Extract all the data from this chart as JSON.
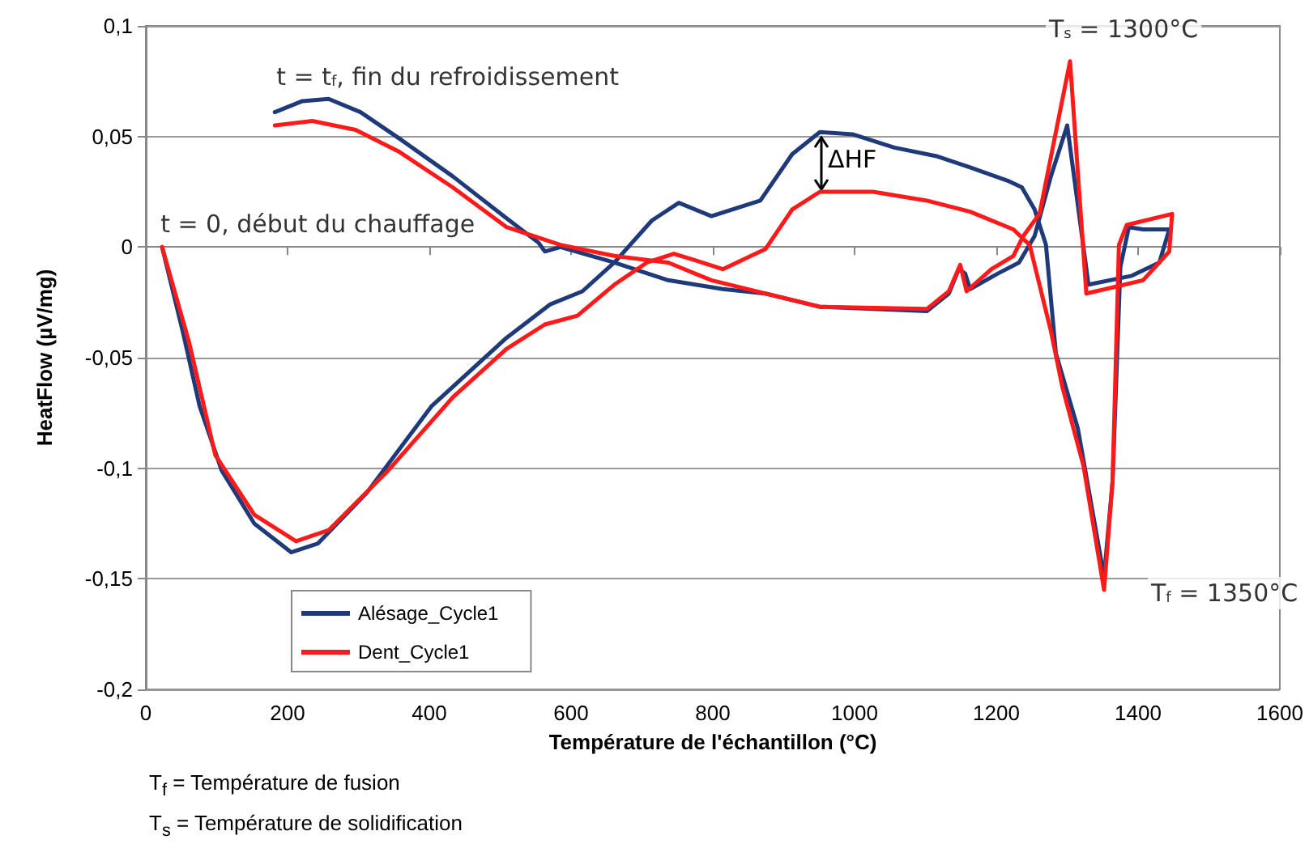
{
  "chart_data": {
    "type": "line",
    "xlabel": "Température de l'échantillon (°C)",
    "ylabel": "HeatFlow (µV/mg)",
    "xlim": [
      0,
      1600
    ],
    "xticks": [
      0,
      200,
      400,
      600,
      800,
      1000,
      1200,
      1400,
      1600
    ],
    "ylim": [
      -0.2,
      0.1
    ],
    "yticks": [
      {
        "value": -0.2,
        "label": "-0,2"
      },
      {
        "value": -0.15,
        "label": "-0,15"
      },
      {
        "value": -0.1,
        "label": "-0,1"
      },
      {
        "value": -0.05,
        "label": "-0,05"
      },
      0,
      {
        "value": 0.05,
        "label": "0,05"
      },
      {
        "value": 0.1,
        "label": "0,1"
      }
    ],
    "grid": "y",
    "legend": "bottom left",
    "marker": "none",
    "line_style": "solid",
    "series": [
      {
        "name": "Alésage_Cycle1",
        "color": "#1f3a7a",
        "x": [
          23,
          52,
          76,
          107,
          153,
          205,
          243,
          312,
          403,
          509,
          570,
          616,
          661,
          714,
          752,
          798,
          867,
          912,
          951,
          997,
          1056,
          1117,
          1163,
          1216,
          1236,
          1254,
          1270,
          1284,
          1315,
          1352,
          1364,
          1375,
          1387,
          1407,
          1444,
          1430,
          1391,
          1330,
          1300,
          1277,
          1254,
          1232,
          1202,
          1163,
          1156,
          1147,
          1133,
          1102,
          1026,
          951,
          874,
          814,
          737,
          661,
          585,
          563,
          554,
          509,
          433,
          358,
          303,
          258,
          221,
          182
        ],
        "values": [
          0,
          -0.038,
          -0.072,
          -0.101,
          -0.125,
          -0.138,
          -0.134,
          -0.111,
          -0.072,
          -0.041,
          -0.026,
          -0.02,
          -0.007,
          0.012,
          0.02,
          0.014,
          0.021,
          0.042,
          0.052,
          0.051,
          0.045,
          0.041,
          0.036,
          0.03,
          0.027,
          0.017,
          0.001,
          -0.048,
          -0.082,
          -0.149,
          -0.106,
          -0.009,
          0.009,
          0.008,
          0.008,
          -0.007,
          -0.013,
          -0.017,
          0.055,
          0.032,
          0.005,
          -0.007,
          -0.012,
          -0.019,
          -0.012,
          -0.01,
          -0.021,
          -0.029,
          -0.028,
          -0.027,
          -0.021,
          -0.019,
          -0.015,
          -0.007,
          0,
          -0.002,
          0.002,
          0.013,
          0.032,
          0.049,
          0.061,
          0.067,
          0.066,
          0.061
        ]
      },
      {
        "name": "Dent_Cycle1",
        "color": "#ff1a1a",
        "x": [
          23,
          61,
          98,
          153,
          212,
          258,
          342,
          433,
          509,
          563,
          609,
          661,
          707,
          745,
          775,
          814,
          867,
          874,
          912,
          951,
          1026,
          1102,
          1163,
          1224,
          1247,
          1277,
          1293,
          1323,
          1352,
          1364,
          1373,
          1384,
          1448,
          1444,
          1407,
          1327,
          1304,
          1284,
          1261,
          1238,
          1224,
          1193,
          1158,
          1149,
          1133,
          1102,
          951,
          798,
          737,
          661,
          585,
          509,
          433,
          358,
          296,
          235,
          182
        ],
        "values": [
          0,
          -0.043,
          -0.094,
          -0.121,
          -0.133,
          -0.128,
          -0.101,
          -0.068,
          -0.046,
          -0.035,
          -0.031,
          -0.017,
          -0.007,
          -0.003,
          -0.006,
          -0.01,
          -0.002,
          -0.001,
          0.017,
          0.025,
          0.025,
          0.021,
          0.016,
          0.008,
          0.001,
          -0.038,
          -0.063,
          -0.099,
          -0.155,
          -0.106,
          0.001,
          0.01,
          0.015,
          -0.002,
          -0.015,
          -0.021,
          0.084,
          0.052,
          0.015,
          0.005,
          -0.004,
          -0.01,
          -0.02,
          -0.008,
          -0.02,
          -0.028,
          -0.027,
          -0.015,
          -0.007,
          -0.004,
          0.001,
          0.009,
          0.027,
          0.043,
          0.053,
          0.057,
          0.055
        ]
      }
    ],
    "annotations": [
      {
        "text": "t = t$_{f}$, fin du refroidissement",
        "x": 182,
        "y": 0.061
      },
      {
        "text": "t = 0, début du chauffage",
        "x": 23,
        "y": 0
      },
      "ΔHF",
      {
        "text": "T$_{s}$ = 1300°C",
        "x": 1304,
        "y": 0.084
      },
      {
        "text": "T$_{f}$ = 1350°C",
        "x": 1352,
        "y": -0.155
      },
      "T$_{f}$ = Température de fusion",
      "T$_{s}$ = Température de solidification"
    ]
  }
}
